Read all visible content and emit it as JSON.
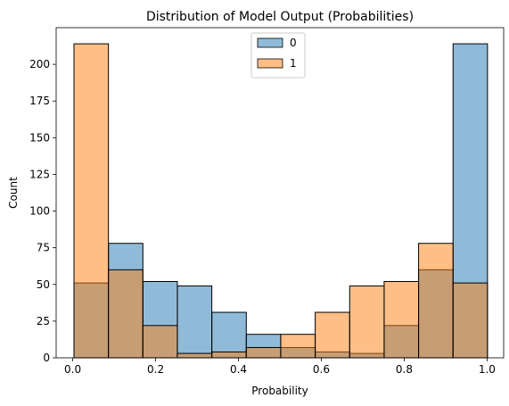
{
  "chart_data": {
    "type": "bar",
    "title": "Distribution of Model Output (Probabilities)",
    "xlabel": "Probability",
    "ylabel": "Count",
    "xlim": [
      -0.04,
      1.04
    ],
    "ylim": [
      0,
      225
    ],
    "xticks": [
      0.0,
      0.2,
      0.4,
      0.6,
      0.8,
      1.0
    ],
    "xtick_labels": [
      "0.0",
      "0.2",
      "0.4",
      "0.6",
      "0.8",
      "1.0"
    ],
    "yticks": [
      0,
      25,
      50,
      75,
      100,
      125,
      150,
      175,
      200
    ],
    "ytick_labels": [
      "0",
      "25",
      "50",
      "75",
      "100",
      "125",
      "150",
      "175",
      "200"
    ],
    "bin_edges": [
      0.003,
      0.0862,
      0.1693,
      0.2525,
      0.3357,
      0.4189,
      0.502,
      0.5852,
      0.6684,
      0.7516,
      0.8347,
      0.9179,
      1.001
    ],
    "series": [
      {
        "name": "0",
        "color": "#1f77b4",
        "values": [
          51,
          78,
          52,
          49,
          31,
          16,
          7,
          4,
          3,
          22,
          60,
          214
        ]
      },
      {
        "name": "1",
        "color": "#ff7f0e",
        "values": [
          214,
          60,
          22,
          3,
          4,
          7,
          16,
          31,
          49,
          52,
          78,
          51
        ]
      }
    ],
    "legend": {
      "position": "top-center",
      "entries": [
        "0",
        "1"
      ]
    },
    "grid": false
  }
}
